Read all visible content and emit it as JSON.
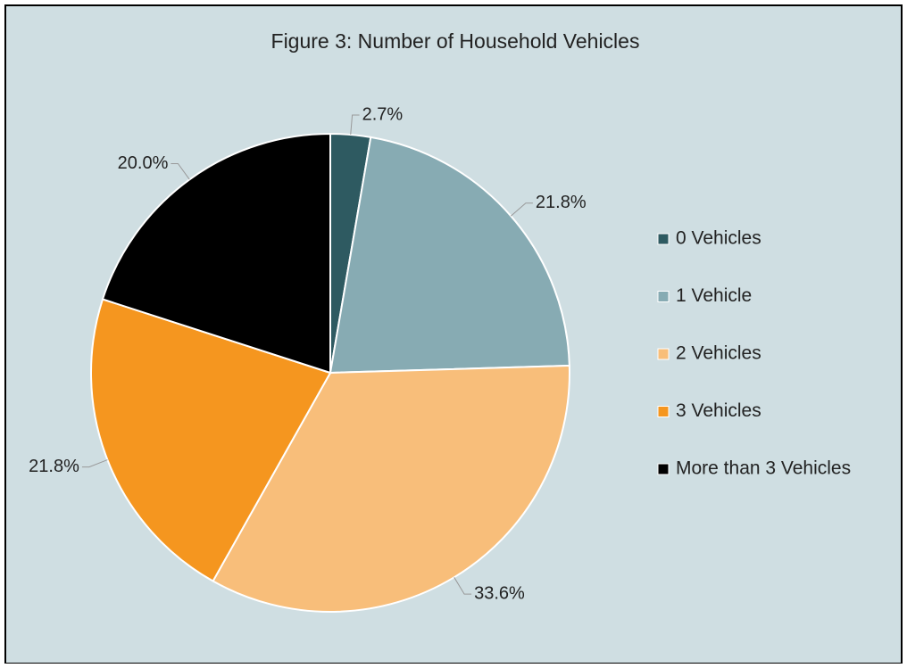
{
  "chart_data": {
    "type": "pie",
    "title": "Figure 3: Number of Household Vehicles",
    "categories": [
      "0 Vehicles",
      "1 Vehicle",
      "2 Vehicles",
      "3 Vehicles",
      "More than 3 Vehicles"
    ],
    "values": [
      2.7,
      21.8,
      33.6,
      21.8,
      20.0
    ],
    "value_labels": [
      "2.7%",
      "21.8%",
      "33.6%",
      "21.8%",
      "20.0%"
    ],
    "colors": [
      "#2e5a61",
      "#87abb3",
      "#f8be7a",
      "#f5961f",
      "#000000"
    ],
    "legend": "right"
  }
}
